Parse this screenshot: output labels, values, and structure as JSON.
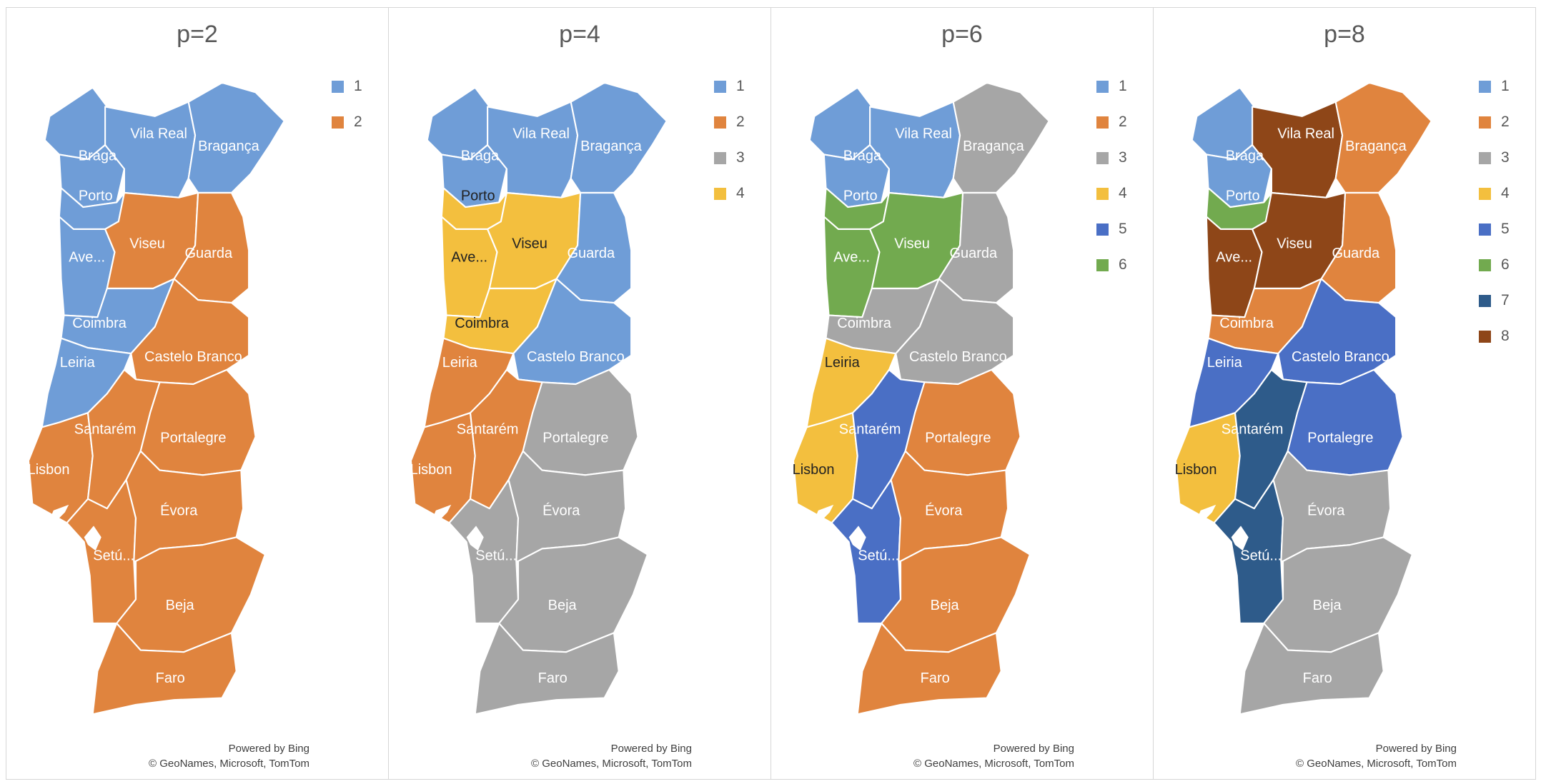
{
  "attribution": {
    "line1": "Powered by Bing",
    "line2": "© GeoNames, Microsoft, TomTom"
  },
  "palette": {
    "1": "#6f9dd7",
    "2": "#e0843e",
    "3": "#a6a6a6",
    "4": "#f3bf3e",
    "5": "#4a6fc5",
    "6": "#72aa4f",
    "7": "#2e5b8a",
    "8": "#8e4618"
  },
  "panels": [
    {
      "title": "p=2",
      "legend": [
        "1",
        "2"
      ],
      "assign": {
        "viana": "1",
        "braga": "1",
        "vilareal": "1",
        "braganca": "1",
        "porto": "1",
        "aveiro": "1",
        "viseu": "2",
        "guarda": "2",
        "coimbra": "1",
        "leiria": "1",
        "castelobranco": "2",
        "lisbon": "2",
        "santarem": "2",
        "portalegre": "2",
        "setubal": "2",
        "evora": "2",
        "beja": "2",
        "faro": "2"
      }
    },
    {
      "title": "p=4",
      "legend": [
        "1",
        "2",
        "3",
        "4"
      ],
      "assign": {
        "viana": "1",
        "braga": "1",
        "vilareal": "1",
        "braganca": "1",
        "porto": "4",
        "aveiro": "4",
        "viseu": "4",
        "guarda": "1",
        "coimbra": "4",
        "leiria": "2",
        "castelobranco": "1",
        "lisbon": "2",
        "santarem": "2",
        "portalegre": "3",
        "setubal": "3",
        "evora": "3",
        "beja": "3",
        "faro": "3"
      }
    },
    {
      "title": "p=6",
      "legend": [
        "1",
        "2",
        "3",
        "4",
        "5",
        "6"
      ],
      "assign": {
        "viana": "1",
        "braga": "1",
        "vilareal": "1",
        "braganca": "3",
        "porto": "6",
        "aveiro": "6",
        "viseu": "6",
        "guarda": "3",
        "coimbra": "3",
        "leiria": "4",
        "castelobranco": "3",
        "lisbon": "4",
        "santarem": "5",
        "portalegre": "2",
        "setubal": "5",
        "evora": "2",
        "beja": "2",
        "faro": "2"
      }
    },
    {
      "title": "p=8",
      "legend": [
        "1",
        "2",
        "3",
        "4",
        "5",
        "6",
        "7",
        "8"
      ],
      "assign": {
        "viana": "1",
        "braga": "1",
        "vilareal": "8",
        "braganca": "2",
        "porto": "6",
        "aveiro": "8",
        "viseu": "8",
        "guarda": "2",
        "coimbra": "2",
        "leiria": "5",
        "castelobranco": "5",
        "lisbon": "4",
        "santarem": "7",
        "portalegre": "5",
        "setubal": "7",
        "evora": "3",
        "beja": "3",
        "faro": "3"
      }
    }
  ],
  "districts": [
    {
      "id": "viana",
      "name": ""
    },
    {
      "id": "braga",
      "name": "Braga"
    },
    {
      "id": "vilareal",
      "name": "Vila Real"
    },
    {
      "id": "braganca",
      "name": "Bragança"
    },
    {
      "id": "porto",
      "name": "Porto"
    },
    {
      "id": "aveiro",
      "name": "Ave..."
    },
    {
      "id": "viseu",
      "name": "Viseu"
    },
    {
      "id": "guarda",
      "name": "Guarda"
    },
    {
      "id": "coimbra",
      "name": "Coimbra"
    },
    {
      "id": "leiria",
      "name": "Leiria"
    },
    {
      "id": "castelobranco",
      "name": "Castelo Branco"
    },
    {
      "id": "lisbon",
      "name": "Lisbon"
    },
    {
      "id": "santarem",
      "name": "Santarém"
    },
    {
      "id": "portalegre",
      "name": "Portalegre"
    },
    {
      "id": "setubal",
      "name": "Setú..."
    },
    {
      "id": "evora",
      "name": "Évora"
    },
    {
      "id": "beja",
      "name": "Beja"
    },
    {
      "id": "faro",
      "name": "Faro"
    }
  ]
}
